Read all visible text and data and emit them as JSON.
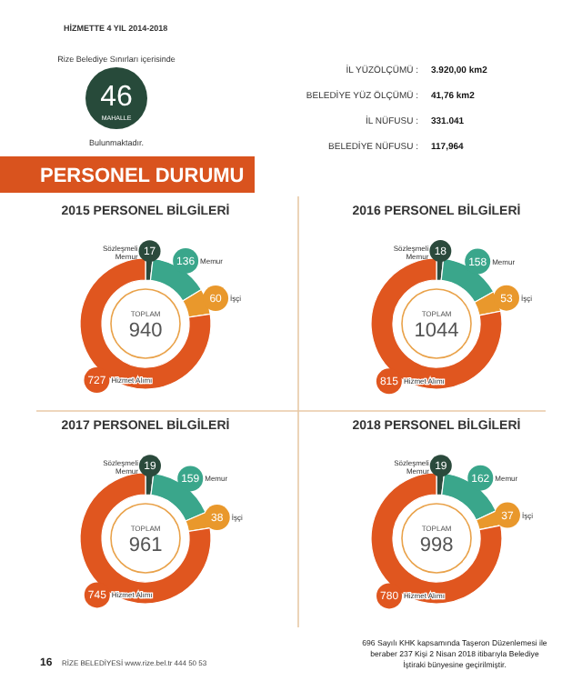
{
  "chart_data": [
    {
      "type": "other",
      "title": "PERSONEL DURUMU",
      "annotations": [
        "HİZMETTE 4 YIL 2014-2018",
        "Rize Belediye Sınırları içerisinde",
        "46",
        "MAHALLE",
        "Bulunmaktadır.",
        "İL YÜZÖLÇÜMÜ  :",
        "3.920,00 km2",
        "BELEDİYE YÜZ ÖLÇÜMÜ  :",
        "41,76 km2",
        "İL NÜFUSU  :",
        "331.041",
        "BELEDİYE NÜFUSU  :",
        "117,964",
        "16",
        "RİZE BELEDİYESİ   www.rize.bel.tr   444 50 53",
        "696 Sayılı KHK kapsamında Taşeron Düzenlemesi ile beraber 237 Kişi 2 Nisan 2018 itibarıyla Belediye İştiraki bünyesine geçirilmiştir."
      ]
    },
    {
      "type": "donut",
      "title": "2015 PERSONEL BİLGİLERİ",
      "categories": [
        "Sözleşmeli Memur",
        "Memur",
        "İşçi",
        "Hizmet Alımı"
      ],
      "values": [
        17,
        136,
        60,
        727
      ],
      "colors": [
        "#2b4a3c",
        "#3aa68b",
        "#e9982c",
        "#e0561f"
      ],
      "data_labels": true,
      "annotations": [
        "TOPLAM",
        "940"
      ]
    },
    {
      "type": "donut",
      "title": "2016 PERSONEL BİLGİLERİ",
      "categories": [
        "Sözleşmeli Memur",
        "Memur",
        "İşçi",
        "Hizmet Alımı"
      ],
      "values": [
        18,
        158,
        53,
        815
      ],
      "colors": [
        "#2b4a3c",
        "#3aa68b",
        "#e9982c",
        "#e0561f"
      ],
      "data_labels": true,
      "annotations": [
        "TOPLAM",
        "1044"
      ]
    },
    {
      "type": "donut",
      "title": "2017 PERSONEL BİLGİLERİ",
      "categories": [
        "Sözleşmeli Memur",
        "Memur",
        "İşçi",
        "Hizmet Alımı"
      ],
      "values": [
        19,
        159,
        38,
        745
      ],
      "colors": [
        "#2b4a3c",
        "#3aa68b",
        "#e9982c",
        "#e0561f"
      ],
      "data_labels": true,
      "annotations": [
        "TOPLAM",
        "961"
      ]
    },
    {
      "type": "donut",
      "title": "2018 PERSONEL BİLGİLERİ",
      "categories": [
        "Sözleşmeli Memur",
        "Memur",
        "İşçi",
        "Hizmet Alımı"
      ],
      "values": [
        19,
        162,
        37,
        780
      ],
      "colors": [
        "#2b4a3c",
        "#3aa68b",
        "#e9982c",
        "#e0561f"
      ],
      "data_labels": true,
      "annotations": [
        "TOPLAM",
        "998"
      ]
    }
  ]
}
